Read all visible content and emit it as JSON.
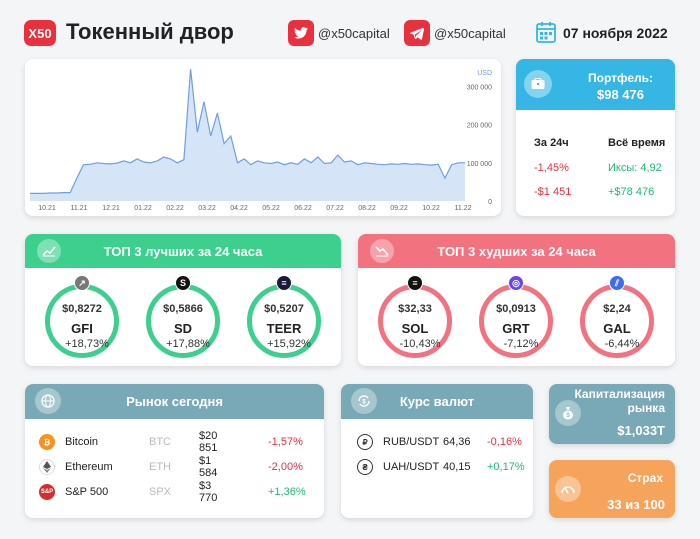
{
  "header": {
    "logo": "X50",
    "title": "Токенный двор",
    "twitter": "@x50capital",
    "telegram": "@x50capital",
    "date": "07 ноября 2022"
  },
  "chart_data": {
    "type": "area",
    "currency_label": "USD",
    "x_ticks": [
      "10.21",
      "11.21",
      "12.21",
      "01.22",
      "02.22",
      "03.22",
      "04.22",
      "05.22",
      "06.22",
      "07.22",
      "08.22",
      "09.22",
      "10.22",
      "11.22"
    ],
    "y_ticks": [
      "0",
      "100 000",
      "200 000",
      "300 000"
    ],
    "ylim": [
      0,
      340000
    ],
    "x": [
      0,
      1,
      2,
      3,
      4,
      5,
      6,
      7,
      8,
      9,
      10,
      11,
      12,
      13,
      14,
      15,
      16,
      17,
      18,
      19,
      20,
      21,
      22,
      23,
      24,
      25,
      26,
      27,
      28,
      29,
      30,
      31,
      32,
      33,
      34,
      35,
      36,
      37,
      38,
      39,
      40,
      41,
      42,
      43,
      44,
      45,
      46,
      47,
      48,
      49,
      50,
      51,
      52,
      53,
      54,
      55,
      56,
      57,
      58,
      59,
      60,
      61,
      62,
      63,
      64,
      65
    ],
    "values": [
      20000,
      20000,
      20000,
      21000,
      21000,
      22000,
      22000,
      60000,
      95000,
      96000,
      100000,
      98000,
      97000,
      99000,
      105000,
      100000,
      110000,
      102000,
      100000,
      105000,
      115000,
      110000,
      100000,
      108000,
      345000,
      180000,
      260000,
      170000,
      230000,
      150000,
      170000,
      100000,
      110000,
      95000,
      105000,
      100000,
      98000,
      102000,
      95000,
      100000,
      96000,
      110000,
      100000,
      115000,
      98000,
      100000,
      120000,
      102000,
      105000,
      95000,
      100000,
      98000,
      96000,
      95000,
      97000,
      96000,
      98000,
      96000,
      97000,
      95000,
      94000,
      96000,
      60000,
      95000,
      100000,
      100000
    ]
  },
  "portfolio": {
    "title": "Портфель:",
    "value": "$98 476",
    "col1_head": "За 24ч",
    "col2_head": "Всё время",
    "col1_pct": "-1,45%",
    "col1_usd": "-$1 451",
    "col2_pct": "Иксы: 4,92",
    "col2_usd": "+$78 476"
  },
  "best": {
    "title": "ТОП 3 лучших за 24 часа",
    "color": "#3ccf8e",
    "items": [
      {
        "price": "$0,8272",
        "symbol": "GFI",
        "change": "+18,73%"
      },
      {
        "price": "$0,5866",
        "symbol": "SD",
        "change": "+17,88%"
      },
      {
        "price": "$0,5207",
        "symbol": "TEER",
        "change": "+15,92%"
      }
    ]
  },
  "worst": {
    "title": "ТОП 3 худших за 24 часа",
    "color": "#f2727f",
    "items": [
      {
        "price": "$32,33",
        "symbol": "SOL",
        "change": "-10,43%"
      },
      {
        "price": "$0,0913",
        "symbol": "GRT",
        "change": "-7,12%"
      },
      {
        "price": "$2,24",
        "symbol": "GAL",
        "change": "-6,44%"
      }
    ]
  },
  "market": {
    "title": "Рынок сегодня",
    "rows": [
      {
        "name": "Bitcoin",
        "ticker": "BTC",
        "price": "$20 851",
        "change": "-1,57%"
      },
      {
        "name": "Ethereum",
        "ticker": "ETH",
        "price": "$1 584",
        "change": "-2,00%"
      },
      {
        "name": "S&P 500",
        "ticker": "SPX",
        "price": "$3 770",
        "change": "+1,36%"
      }
    ]
  },
  "fx": {
    "title": "Курс валют",
    "rows": [
      {
        "pair": "RUB/USDT",
        "price": "64,36",
        "change": "-0,16%"
      },
      {
        "pair": "UAH/USDT",
        "price": "40,15",
        "change": "+0,17%"
      }
    ]
  },
  "cap": {
    "title_line1": "Капитализация",
    "title_line2": "рынка",
    "value": "$1,033T"
  },
  "fear": {
    "title": "Страх",
    "value": "33 из 100"
  },
  "colors": {
    "accent_red": "#e8303f",
    "portfolio_blue": "#35b6e4",
    "market_teal": "#79a9b6",
    "fear_orange": "#f6a35c",
    "chart_line": "#6f9fe0",
    "chart_fill": "#d6e4f7"
  }
}
